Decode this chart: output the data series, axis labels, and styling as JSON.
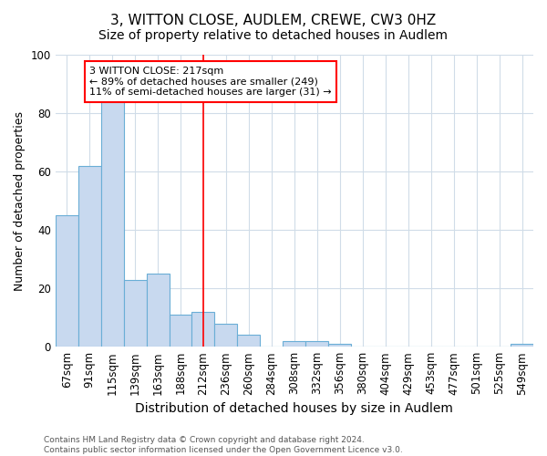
{
  "title1": "3, WITTON CLOSE, AUDLEM, CREWE, CW3 0HZ",
  "title2": "Size of property relative to detached houses in Audlem",
  "xlabel": "Distribution of detached houses by size in Audlem",
  "ylabel": "Number of detached properties",
  "categories": [
    "67sqm",
    "91sqm",
    "115sqm",
    "139sqm",
    "163sqm",
    "188sqm",
    "212sqm",
    "236sqm",
    "260sqm",
    "284sqm",
    "308sqm",
    "332sqm",
    "356sqm",
    "380sqm",
    "404sqm",
    "429sqm",
    "453sqm",
    "477sqm",
    "501sqm",
    "525sqm",
    "549sqm"
  ],
  "values": [
    45,
    62,
    84,
    23,
    25,
    11,
    12,
    8,
    4,
    0,
    2,
    2,
    1,
    0,
    0,
    0,
    0,
    0,
    0,
    0,
    1
  ],
  "bar_color": "#c8d9ef",
  "bar_edge_color": "#6aaed6",
  "bar_width": 1.0,
  "vline_x": 6,
  "vline_color": "red",
  "annotation_text": "3 WITTON CLOSE: 217sqm\n← 89% of detached houses are smaller (249)\n11% of semi-detached houses are larger (31) →",
  "annotation_box_color": "white",
  "annotation_box_edge_color": "red",
  "ylim": [
    0,
    100
  ],
  "yticks": [
    0,
    20,
    40,
    60,
    80,
    100
  ],
  "footer1": "Contains HM Land Registry data © Crown copyright and database right 2024.",
  "footer2": "Contains public sector information licensed under the Open Government Licence v3.0.",
  "bg_color": "#ffffff",
  "plot_bg_color": "#ffffff",
  "grid_color": "#d0dce8",
  "title1_fontsize": 11,
  "title2_fontsize": 10,
  "xlabel_fontsize": 10,
  "ylabel_fontsize": 9,
  "tick_fontsize": 8.5,
  "footer_fontsize": 6.5
}
